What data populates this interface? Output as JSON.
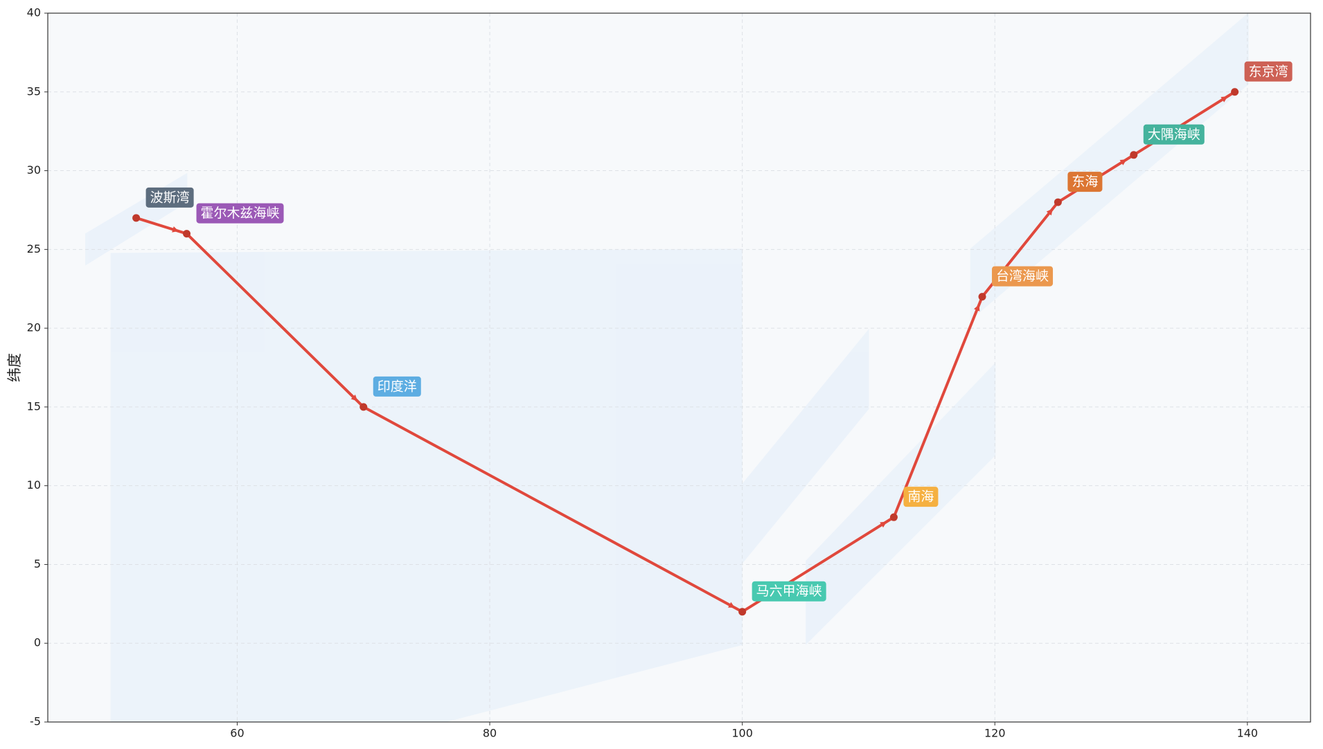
{
  "chart_data": {
    "type": "line",
    "y_label": "纬度",
    "x": [
      52,
      56,
      70,
      100,
      112,
      119,
      125,
      131,
      139
    ],
    "values": [
      27,
      26,
      15,
      2,
      8,
      22,
      28,
      31,
      35
    ],
    "point_labels": [
      "波斯湾",
      "霍尔木兹海峡",
      "印度洋",
      "马六甲海峡",
      "南海",
      "台湾海峡",
      "东海",
      "大隅海峡",
      "东京湾"
    ],
    "point_label_colors": [
      "#5d6d7e",
      "#9b59b6",
      "#5dade2",
      "#48c9b0",
      "#f5b041",
      "#eb984e",
      "#dc7633",
      "#45b39d",
      "#cd6155"
    ],
    "color": "#e0483c",
    "marker_color": "#c0392b",
    "xlim": [
      45,
      145
    ],
    "xticks": [
      60,
      80,
      100,
      120,
      140
    ],
    "ylim": [
      -5,
      40
    ],
    "yticks": [
      -5,
      0,
      5,
      10,
      15,
      20,
      25,
      30,
      35,
      40
    ],
    "grid": true
  }
}
